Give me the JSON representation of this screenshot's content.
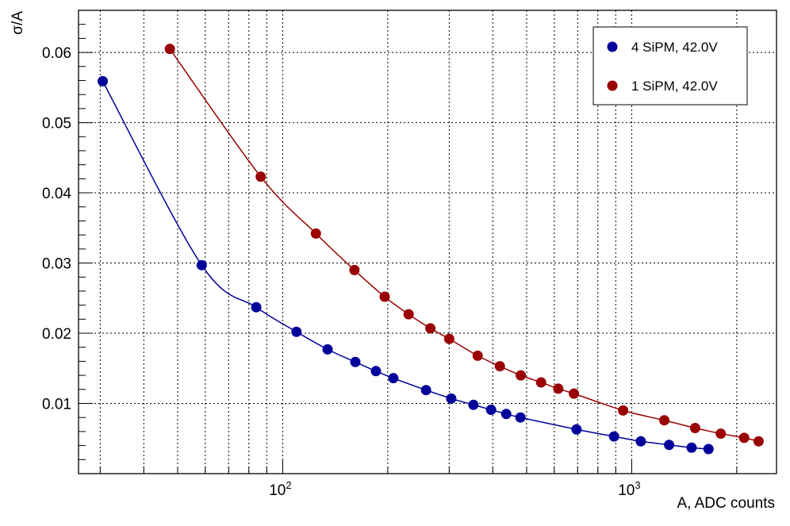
{
  "chart_data": {
    "type": "scatter",
    "title": "",
    "xlabel": "A, ADC counts",
    "ylabel": "σ/A",
    "x_scale": "log",
    "xlim": [
      26,
      2600
    ],
    "ylim": [
      0.0,
      0.066
    ],
    "grid": true,
    "legend_position": "top-right",
    "x_tick_labels": [
      {
        "value": 100,
        "base": "10",
        "exp": "2"
      },
      {
        "value": 1000,
        "base": "10",
        "exp": "3"
      }
    ],
    "y_ticks": [
      "0.01",
      "0.02",
      "0.03",
      "0.04",
      "0.05",
      "0.06"
    ],
    "series": [
      {
        "name": "4 SiPM, 42.0V",
        "color": "#00009a",
        "marker": "circle",
        "fit_line": true,
        "x": [
          30.5,
          58.6,
          84.0,
          109.5,
          134.5,
          161.5,
          185.0,
          207.5,
          257.5,
          304.0,
          352.0,
          395.5,
          437.0,
          480.0,
          695.0,
          890.0,
          1062.0,
          1280.0,
          1485.0,
          1660.0
        ],
        "y": [
          0.0559,
          0.0297,
          0.0237,
          0.0202,
          0.0177,
          0.0159,
          0.0146,
          0.0136,
          0.0119,
          0.0107,
          0.0098,
          0.0091,
          0.0085,
          0.008,
          0.0063,
          0.0053,
          0.0046,
          0.0041,
          0.0037,
          0.0035
        ]
      },
      {
        "name": "1 SiPM, 42.0V",
        "color": "#9a0000",
        "marker": "circle",
        "fit_line": true,
        "x": [
          47.5,
          86.5,
          124.5,
          160.5,
          196.0,
          229.5,
          265.0,
          300.0,
          362.0,
          419.0,
          481.0,
          550.0,
          616.0,
          683.0,
          945.0,
          1240.0,
          1520.0,
          1800.0,
          2100.0,
          2310.0
        ],
        "y": [
          0.0605,
          0.0423,
          0.0342,
          0.029,
          0.0252,
          0.0227,
          0.0207,
          0.0192,
          0.0168,
          0.0153,
          0.014,
          0.013,
          0.0121,
          0.0114,
          0.009,
          0.0076,
          0.0065,
          0.0057,
          0.0051,
          0.0046
        ]
      }
    ]
  }
}
